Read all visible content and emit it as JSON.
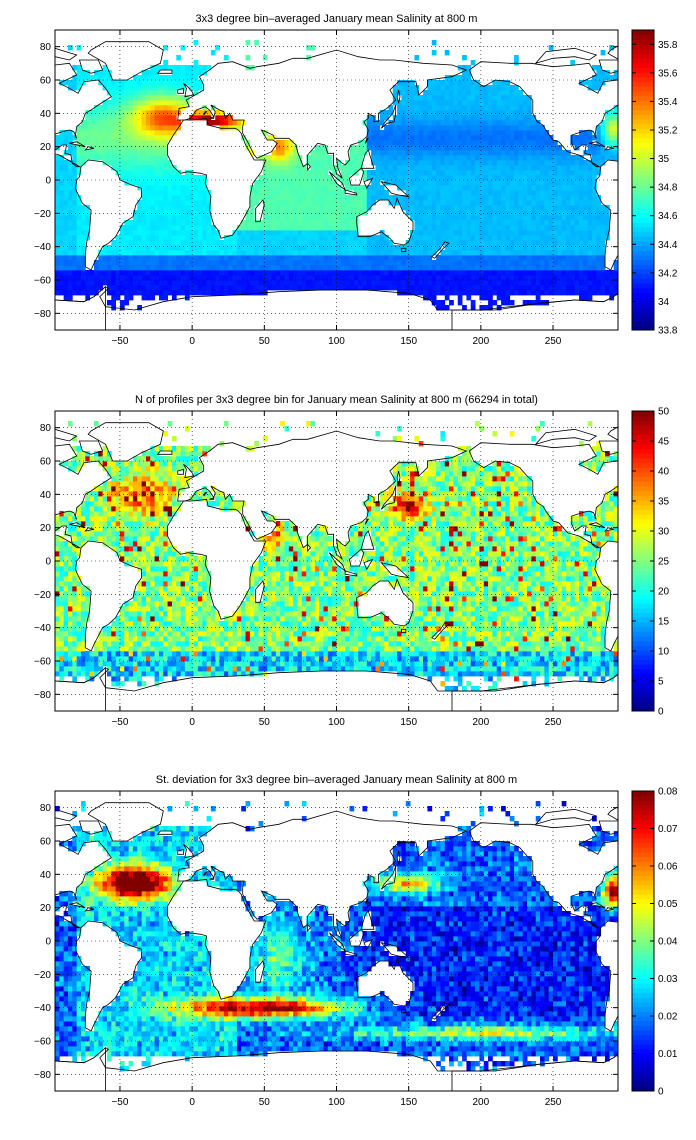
{
  "figure": {
    "colors": {
      "land": "#ffffff",
      "coast": "#000000",
      "grid": "#000000",
      "colormap": "jet"
    }
  },
  "chart_data": [
    {
      "type": "heatmap",
      "title": "3x3 degree bin–averaged January mean Salinity at 800 m",
      "xlabel": "",
      "ylabel": "",
      "xlim": [
        -95,
        295
      ],
      "ylim": [
        -90,
        90
      ],
      "xticks": [
        -50,
        0,
        50,
        100,
        150,
        200,
        250
      ],
      "yticks": [
        -80,
        -60,
        -40,
        -20,
        0,
        20,
        40,
        60,
        80
      ],
      "grid": true,
      "bin_size_deg": 3,
      "colorbar": {
        "min": 33.8,
        "max": 35.9,
        "ticks": [
          33.8,
          34,
          34.2,
          34.4,
          34.6,
          34.8,
          35,
          35.2,
          35.4,
          35.6,
          35.8
        ],
        "tick_labels": [
          "33.8",
          "34",
          "34.2",
          "34.4",
          "34.6",
          "34.8",
          "35",
          "35.2",
          "35.4",
          "35.6",
          "35.8"
        ]
      }
    },
    {
      "type": "heatmap",
      "title": "N of profiles per 3x3 degree bin for January mean Salinity at 800 m (66294 in total)",
      "xlabel": "",
      "ylabel": "",
      "xlim": [
        -95,
        295
      ],
      "ylim": [
        -90,
        90
      ],
      "xticks": [
        -50,
        0,
        50,
        100,
        150,
        200,
        250
      ],
      "yticks": [
        -80,
        -60,
        -40,
        -20,
        0,
        20,
        40,
        60,
        80
      ],
      "grid": true,
      "bin_size_deg": 3,
      "total_profiles": 66294,
      "colorbar": {
        "min": 0,
        "max": 50,
        "ticks": [
          0,
          5,
          10,
          15,
          20,
          25,
          30,
          35,
          40,
          45,
          50
        ],
        "tick_labels": [
          "0",
          "5",
          "10",
          "15",
          "20",
          "25",
          "30",
          "35",
          "40",
          "45",
          "50"
        ]
      }
    },
    {
      "type": "heatmap",
      "title": "St. deviation for 3x3 degree bin–averaged January mean Salinity at 800 m",
      "xlabel": "",
      "ylabel": "",
      "xlim": [
        -95,
        295
      ],
      "ylim": [
        -90,
        90
      ],
      "xticks": [
        -50,
        0,
        50,
        100,
        150,
        200,
        250
      ],
      "yticks": [
        -80,
        -60,
        -40,
        -20,
        0,
        20,
        40,
        60,
        80
      ],
      "grid": true,
      "bin_size_deg": 3,
      "colorbar": {
        "min": 0,
        "max": 0.08,
        "ticks": [
          0,
          0.01,
          0.02,
          0.03,
          0.04,
          0.05,
          0.06,
          0.07,
          0.08
        ],
        "tick_labels": [
          "0",
          "0.01",
          "0.02",
          "0.03",
          "0.04",
          "0.05",
          "0.06",
          "0.07",
          "0.08"
        ]
      }
    }
  ]
}
